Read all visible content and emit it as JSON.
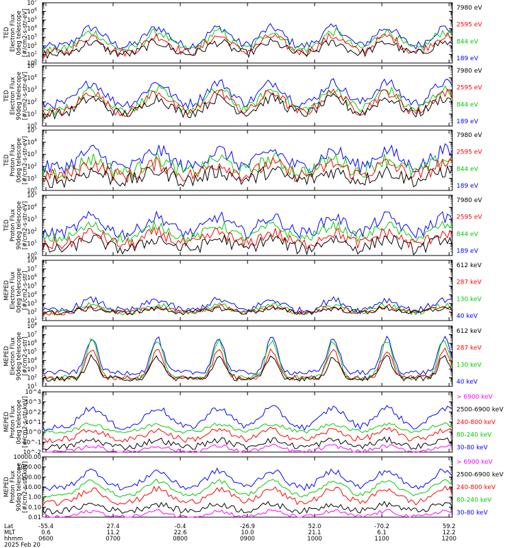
{
  "chart_data": [
    {
      "type": "line",
      "instrument": "TED",
      "ylabel": [
        "TED",
        "Electron Flux",
        "0deg telescope",
        "[#/cm2-s-str-eV]"
      ],
      "yscale": "log",
      "ylim_exp": [
        0,
        7
      ],
      "tick_format": "exp",
      "series": [
        {
          "name": "7980 eV",
          "color": "#000000",
          "base": 1.0,
          "peak": 2.4,
          "noise": 0.5
        },
        {
          "name": "2595 eV",
          "color": "#ff0000",
          "base": 1.2,
          "peak": 3.1,
          "noise": 0.5
        },
        {
          "name": "844 eV",
          "color": "#00cc00",
          "base": 1.5,
          "peak": 3.6,
          "noise": 0.5
        },
        {
          "name": "189 eV",
          "color": "#0000ff",
          "base": 1.9,
          "peak": 4.1,
          "noise": 0.5
        }
      ]
    },
    {
      "type": "line",
      "instrument": "TED",
      "ylabel": [
        "TED",
        "Electron Flux",
        "90deg telescope",
        "[#/cm2-s-str-eV]"
      ],
      "yscale": "log",
      "ylim_exp": [
        0,
        5
      ],
      "tick_format": "exp",
      "series": [
        {
          "name": "7980 eV",
          "color": "#000000",
          "base": 1.0,
          "peak": 2.3,
          "noise": 0.4
        },
        {
          "name": "2595 eV",
          "color": "#ff0000",
          "base": 1.1,
          "peak": 2.8,
          "noise": 0.4
        },
        {
          "name": "844 eV",
          "color": "#00cc00",
          "base": 1.3,
          "peak": 3.0,
          "noise": 0.4
        },
        {
          "name": "189 eV",
          "color": "#0000ff",
          "base": 1.8,
          "peak": 3.6,
          "noise": 0.4
        }
      ]
    },
    {
      "type": "line",
      "instrument": "TED",
      "ylabel": [
        "TED",
        "Proton Flux",
        "0deg telescope",
        "[#/cm2-s-str-eV]"
      ],
      "yscale": "log",
      "ylim_exp": [
        0,
        5
      ],
      "tick_format": "exp",
      "series": [
        {
          "name": "7980 eV",
          "color": "#000000",
          "base": 0.8,
          "peak": 1.6,
          "noise": 0.6
        },
        {
          "name": "2595 eV",
          "color": "#ff0000",
          "base": 1.2,
          "peak": 2.2,
          "noise": 0.6
        },
        {
          "name": "844 eV",
          "color": "#00cc00",
          "base": 1.5,
          "peak": 2.6,
          "noise": 0.6
        },
        {
          "name": "189 eV",
          "color": "#0000ff",
          "base": 1.9,
          "peak": 3.3,
          "noise": 0.6
        }
      ]
    },
    {
      "type": "line",
      "instrument": "TED",
      "ylabel": [
        "TED",
        "Proton Flux",
        "90deg telescope",
        "[#/cm2-s-str-eV]"
      ],
      "yscale": "log",
      "ylim_exp": [
        0,
        5
      ],
      "tick_format": "exp",
      "series": [
        {
          "name": "7980 eV",
          "color": "#000000",
          "base": 0.5,
          "peak": 1.4,
          "noise": 0.5
        },
        {
          "name": "2595 eV",
          "color": "#ff0000",
          "base": 0.9,
          "peak": 1.9,
          "noise": 0.5
        },
        {
          "name": "844 eV",
          "color": "#00cc00",
          "base": 1.4,
          "peak": 2.5,
          "noise": 0.4
        },
        {
          "name": "189 eV",
          "color": "#0000ff",
          "base": 1.8,
          "peak": 3.2,
          "noise": 0.5
        }
      ]
    },
    {
      "type": "line",
      "instrument": "MEPED",
      "ylabel": [
        "MEPED",
        "Electron Flux",
        "0deg telescope",
        "[#/cm2-s-str]"
      ],
      "yscale": "log",
      "ylim_exp": [
        1,
        8
      ],
      "tick_format": "exp",
      "series": [
        {
          "name": "612 keV",
          "color": "#000000",
          "base": 1.9,
          "peak": 2.4,
          "noise": 0.3
        },
        {
          "name": "287 keV",
          "color": "#ff0000",
          "base": 1.9,
          "peak": 2.6,
          "noise": 0.3
        },
        {
          "name": "130 keV",
          "color": "#00cc00",
          "base": 1.9,
          "peak": 2.8,
          "noise": 0.3
        },
        {
          "name": "40 keV",
          "color": "#0000ff",
          "base": 2.1,
          "peak": 3.4,
          "noise": 0.4
        }
      ]
    },
    {
      "type": "line",
      "instrument": "MEPED",
      "ylabel": [
        "MEPED",
        "Electron Flux",
        "90deg telescope",
        "[#/cm2-s-str]"
      ],
      "yscale": "log",
      "ylim_exp": [
        1,
        8
      ],
      "tick_format": "exp",
      "series": [
        {
          "name": "612 keV",
          "color": "#000000",
          "base": 1.9,
          "peak": 4.4,
          "noise": 0.3
        },
        {
          "name": "287 keV",
          "color": "#ff0000",
          "base": 2.0,
          "peak": 5.2,
          "noise": 0.3
        },
        {
          "name": "130 keV",
          "color": "#00cc00",
          "base": 2.0,
          "peak": 6.3,
          "noise": 0.3
        },
        {
          "name": "40 keV",
          "color": "#0000ff",
          "base": 2.6,
          "peak": 6.6,
          "noise": 0.3
        }
      ]
    },
    {
      "type": "line",
      "instrument": "MEPED",
      "ylabel": [
        "MEPED",
        "Proton Flux",
        "0deg telescope",
        "[#/cm2-s-str-keV]"
      ],
      "yscale": "log",
      "ylim_exp": [
        -2,
        4
      ],
      "tick_labels": [
        "10^-2",
        "10^-1",
        "10^0",
        "10^1",
        "10^2",
        "10^3",
        "10^4"
      ],
      "series": [
        {
          "name": "> 6900 keV",
          "color": "#ff00ff",
          "base": -2.0,
          "peak": -1.4,
          "noise": 0.2
        },
        {
          "name": "2500-6900 keV",
          "color": "#000000",
          "base": -1.5,
          "peak": -0.8,
          "noise": 0.3
        },
        {
          "name": "240-800 keV",
          "color": "#ff0000",
          "base": -0.8,
          "peak": 0.2,
          "noise": 0.3
        },
        {
          "name": "80-240 keV",
          "color": "#00cc00",
          "base": 0.0,
          "peak": 0.8,
          "noise": 0.2
        },
        {
          "name": "30-80 keV",
          "color": "#0000ff",
          "base": 0.4,
          "peak": 2.4,
          "noise": 0.3
        }
      ]
    },
    {
      "type": "line",
      "instrument": "MEPED",
      "ylabel": [
        "MEPED",
        "Proton Flux",
        "90deg telescope",
        "[#/cm2-s-str-keV]"
      ],
      "yscale": "log",
      "ylim_exp": [
        -2,
        4
      ],
      "tick_labels": [
        "0.01",
        "0.10",
        "1.00",
        "10.00",
        "100.00",
        "1000.00",
        "10000.00"
      ],
      "series": [
        {
          "name": "> 6900 keV",
          "color": "#ff00ff",
          "base": -2.0,
          "peak": -1.4,
          "noise": 0.2
        },
        {
          "name": "2500-6900 keV",
          "color": "#000000",
          "base": -1.4,
          "peak": -0.7,
          "noise": 0.3
        },
        {
          "name": "240-800 keV",
          "color": "#ff0000",
          "base": -0.6,
          "peak": 0.8,
          "noise": 0.3
        },
        {
          "name": "80-240 keV",
          "color": "#00cc00",
          "base": 0.1,
          "peak": 1.6,
          "noise": 0.2
        },
        {
          "name": "30-80 keV",
          "color": "#0000ff",
          "base": 0.9,
          "peak": 2.6,
          "noise": 0.3
        }
      ]
    }
  ],
  "x_axis": {
    "row_labels": [
      "Lat",
      "MLT",
      "hhmm"
    ],
    "ticks": [
      {
        "lat": "-55.4",
        "mlt": "0.6",
        "time": "0600"
      },
      {
        "lat": "27.4",
        "mlt": "11.2",
        "time": "0700"
      },
      {
        "lat": "-0.4",
        "mlt": "22.6",
        "time": "0800"
      },
      {
        "lat": "-26.9",
        "mlt": "10.0",
        "time": "0900"
      },
      {
        "lat": "52.0",
        "mlt": "21.1",
        "time": "1000"
      },
      {
        "lat": "-70.2",
        "mlt": "6.1",
        "time": "1100"
      },
      {
        "lat": "59.2",
        "mlt": "12.2",
        "time": "1200"
      }
    ],
    "date": "2025 Feb 20"
  }
}
